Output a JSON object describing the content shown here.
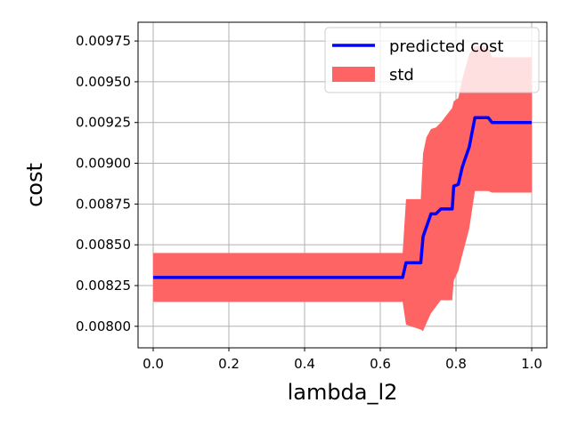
{
  "chart_data": {
    "type": "line",
    "title": "",
    "xlabel": "lambda_l2",
    "ylabel": "cost",
    "xlim": [
      -0.04,
      1.04
    ],
    "ylim": [
      0.007868,
      0.009865
    ],
    "grid": true,
    "legend_position": "top-right",
    "x_ticks": [
      0.0,
      0.2,
      0.4,
      0.6,
      0.8,
      1.0
    ],
    "x_tick_labels": [
      "0.0",
      "0.2",
      "0.4",
      "0.6",
      "0.8",
      "1.0"
    ],
    "y_ticks": [
      0.008,
      0.00825,
      0.0085,
      0.00875,
      0.009,
      0.00925,
      0.0095,
      0.00975
    ],
    "y_tick_labels": [
      "0.00800",
      "0.00825",
      "0.00850",
      "0.00875",
      "0.00900",
      "0.00925",
      "0.00950",
      "0.00975"
    ],
    "series": [
      {
        "name": "predicted cost",
        "color": "#0000ff",
        "kind": "line",
        "x": [
          0.0,
          0.659,
          0.668,
          0.707,
          0.713,
          0.722,
          0.734,
          0.747,
          0.76,
          0.79,
          0.794,
          0.806,
          0.817,
          0.835,
          0.85,
          0.885,
          0.895,
          1.0
        ],
        "y": [
          0.0083,
          0.0083,
          0.00839,
          0.00839,
          0.00855,
          0.00861,
          0.00869,
          0.00869,
          0.00872,
          0.00872,
          0.00886,
          0.00887,
          0.00898,
          0.0091,
          0.00928,
          0.00928,
          0.00925,
          0.00925
        ]
      },
      {
        "name": "std",
        "color": "#ff6464",
        "kind": "band",
        "x": [
          0.0,
          0.659,
          0.668,
          0.707,
          0.713,
          0.722,
          0.734,
          0.747,
          0.76,
          0.79,
          0.794,
          0.806,
          0.817,
          0.835,
          0.85,
          0.885,
          0.895,
          1.0
        ],
        "upper": [
          0.00845,
          0.00845,
          0.00878,
          0.00878,
          0.00906,
          0.00916,
          0.00921,
          0.00922,
          0.00925,
          0.00934,
          0.00938,
          0.0094,
          0.00952,
          0.00967,
          0.00972,
          0.00972,
          0.00965,
          0.00965
        ],
        "lower": [
          0.00815,
          0.00815,
          0.00801,
          0.00798,
          0.00797,
          0.00802,
          0.00808,
          0.00812,
          0.00816,
          0.00816,
          0.00828,
          0.00834,
          0.00844,
          0.0086,
          0.00883,
          0.00883,
          0.00882,
          0.00882
        ]
      }
    ]
  }
}
